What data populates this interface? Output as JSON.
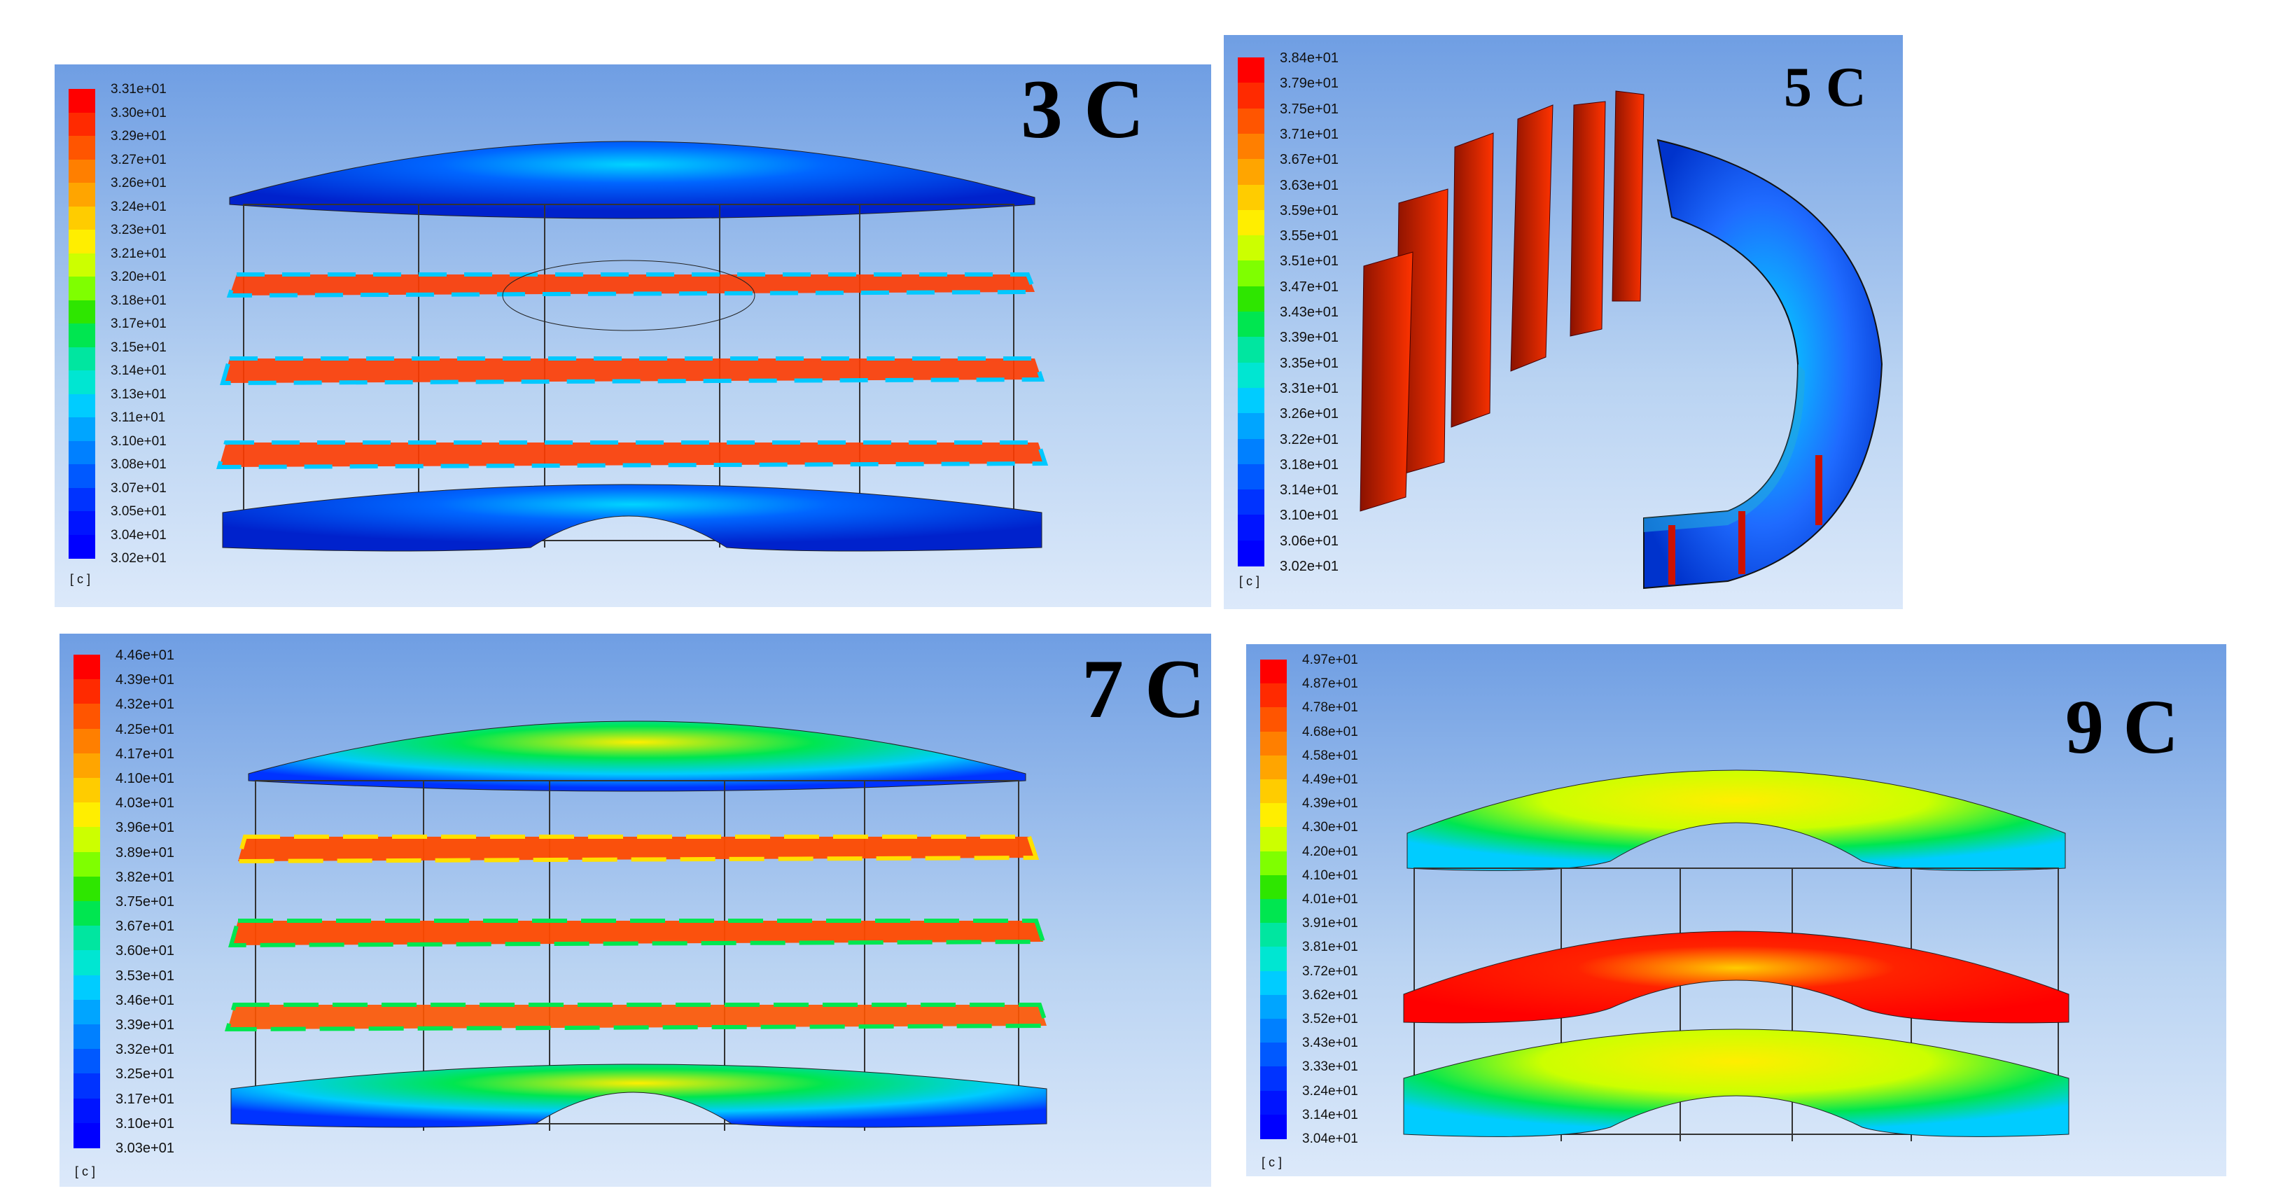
{
  "panels": [
    {
      "id": "3c",
      "title": "3 C",
      "unit": "[ c ]",
      "legend_ticks": [
        "3.31e+01",
        "3.30e+01",
        "3.29e+01",
        "3.27e+01",
        "3.26e+01",
        "3.24e+01",
        "3.23e+01",
        "3.21e+01",
        "3.20e+01",
        "3.18e+01",
        "3.17e+01",
        "3.15e+01",
        "3.14e+01",
        "3.13e+01",
        "3.11e+01",
        "3.10e+01",
        "3.08e+01",
        "3.07e+01",
        "3.05e+01",
        "3.04e+01",
        "3.02e+01"
      ]
    },
    {
      "id": "5c",
      "title": "5 C",
      "unit": "[ c ]",
      "legend_ticks": [
        "3.84e+01",
        "3.79e+01",
        "3.75e+01",
        "3.71e+01",
        "3.67e+01",
        "3.63e+01",
        "3.59e+01",
        "3.55e+01",
        "3.51e+01",
        "3.47e+01",
        "3.43e+01",
        "3.39e+01",
        "3.35e+01",
        "3.31e+01",
        "3.26e+01",
        "3.22e+01",
        "3.18e+01",
        "3.14e+01",
        "3.10e+01",
        "3.06e+01",
        "3.02e+01"
      ]
    },
    {
      "id": "7c",
      "title": "7 C",
      "unit": "[ c ]",
      "legend_ticks": [
        "4.46e+01",
        "4.39e+01",
        "4.32e+01",
        "4.25e+01",
        "4.17e+01",
        "4.10e+01",
        "4.03e+01",
        "3.96e+01",
        "3.89e+01",
        "3.82e+01",
        "3.75e+01",
        "3.67e+01",
        "3.60e+01",
        "3.53e+01",
        "3.46e+01",
        "3.39e+01",
        "3.32e+01",
        "3.25e+01",
        "3.17e+01",
        "3.10e+01",
        "3.03e+01"
      ]
    },
    {
      "id": "9c",
      "title": "9 C",
      "unit": "[ c ]",
      "legend_ticks": [
        "4.97e+01",
        "4.87e+01",
        "4.78e+01",
        "4.68e+01",
        "4.58e+01",
        "4.49e+01",
        "4.39e+01",
        "4.30e+01",
        "4.20e+01",
        "4.10e+01",
        "4.01e+01",
        "3.91e+01",
        "3.81e+01",
        "3.72e+01",
        "3.62e+01",
        "3.52e+01",
        "3.43e+01",
        "3.33e+01",
        "3.24e+01",
        "3.14e+01",
        "3.04e+01"
      ]
    }
  ],
  "colormap": [
    "#ff0000",
    "#ff2a00",
    "#ff5500",
    "#ff7f00",
    "#ffa500",
    "#ffcc00",
    "#ffee00",
    "#ccff00",
    "#7fff00",
    "#2ee600",
    "#00e650",
    "#00e6a0",
    "#00e6d2",
    "#00ccff",
    "#00a5ff",
    "#0080ff",
    "#0059ff",
    "#0033ff",
    "#0014ff",
    "#0000ff"
  ]
}
